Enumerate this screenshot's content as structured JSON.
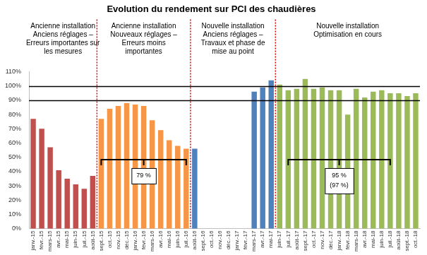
{
  "chart_data": {
    "type": "bar",
    "title": "Evolution du rendement sur PCI des chaudières",
    "categories": [
      "janv.-15",
      "févr.-15",
      "mars-15",
      "avr.-15",
      "mai-15",
      "juin-15",
      "juil.-15",
      "août-15",
      "sept.-15",
      "oct.-15",
      "nov.-15",
      "déc.-15",
      "janv.-16",
      "févr.-16",
      "mars-16",
      "avr.-16",
      "mai-16",
      "juin-16",
      "juil.-16",
      "août-16",
      "sept.-16",
      "oct.-16",
      "nov.-16",
      "déc.-16",
      "janv.-17",
      "févr.-17",
      "mars-17",
      "avr.-17",
      "mai-17",
      "juin-17",
      "juil.-17",
      "août-17",
      "sept.-17",
      "oct.-17",
      "nov.-17",
      "déc.-17",
      "janv.-18",
      "févr.-18",
      "mars-18",
      "avr.-18",
      "mai-18",
      "juin-18",
      "juil.-18",
      "août-18",
      "sept.-18",
      "oct.-18"
    ],
    "values": [
      77,
      70,
      57,
      41,
      35,
      31,
      28,
      37,
      77,
      84,
      86,
      88,
      87,
      86,
      76,
      69,
      62,
      58,
      56,
      56,
      null,
      null,
      null,
      null,
      null,
      null,
      96,
      99,
      104,
      101,
      97,
      98,
      105,
      98,
      99,
      97,
      97,
      80,
      98,
      92,
      96,
      97,
      95,
      95,
      93,
      95
    ],
    "colors": [
      "#c0504d",
      "#c0504d",
      "#c0504d",
      "#c0504d",
      "#c0504d",
      "#c0504d",
      "#c0504d",
      "#c0504d",
      "#f79646",
      "#f79646",
      "#f79646",
      "#f79646",
      "#f79646",
      "#f79646",
      "#f79646",
      "#f79646",
      "#f79646",
      "#f79646",
      "#f79646",
      "#4f81bd",
      "#4f81bd",
      "#4f81bd",
      "#4f81bd",
      "#4f81bd",
      "#4f81bd",
      "#4f81bd",
      "#4f81bd",
      "#4f81bd",
      "#4f81bd",
      "#9bbb59",
      "#9bbb59",
      "#9bbb59",
      "#9bbb59",
      "#9bbb59",
      "#9bbb59",
      "#9bbb59",
      "#9bbb59",
      "#9bbb59",
      "#9bbb59",
      "#9bbb59",
      "#9bbb59",
      "#9bbb59",
      "#9bbb59",
      "#9bbb59",
      "#9bbb59",
      "#9bbb59"
    ],
    "ylim": [
      0,
      110
    ],
    "yticks": [
      {
        "value": 0,
        "label": "0%"
      },
      {
        "value": 10,
        "label": "10%"
      },
      {
        "value": 20,
        "label": "20%"
      },
      {
        "value": 30,
        "label": "30%"
      },
      {
        "value": 40,
        "label": "40%"
      },
      {
        "value": 50,
        "label": "50%"
      },
      {
        "value": 60,
        "label": "60%"
      },
      {
        "value": 70,
        "label": "70%"
      },
      {
        "value": 80,
        "label": "80%"
      },
      {
        "value": 90,
        "label": "90%"
      },
      {
        "value": 100,
        "label": "100%"
      },
      {
        "value": 110,
        "label": "110%"
      }
    ],
    "grid": false,
    "hlines": [
      90,
      100
    ],
    "phases": [
      {
        "label": [
          "Ancienne installation",
          "Anciens réglages –",
          "Erreurs importantes sur",
          "les mesures"
        ],
        "start": "janv.-15",
        "end": "août-15"
      },
      {
        "label": [
          "Ancienne installation",
          "Nouveaux réglages –",
          "Erreurs moins",
          "importantes"
        ],
        "start": "sept.-15",
        "end": "juil.-16"
      },
      {
        "label": [
          "Nouvelle installation",
          "Anciens réglages –",
          "Travaux et phase de",
          "mise au point"
        ],
        "start": "août-16",
        "end": "mai-17"
      },
      {
        "label": [
          "Nouvelle installation",
          "Optimisation en cours"
        ],
        "start": "juin-17",
        "end": "oct.-18"
      }
    ],
    "brackets": [
      {
        "label": [
          "79 %"
        ],
        "start": "sept.-15",
        "end": "juil.-16"
      },
      {
        "label": [
          "95 %",
          "(97 %)"
        ],
        "start": "juil.-17",
        "end": "juil.-18"
      }
    ]
  }
}
